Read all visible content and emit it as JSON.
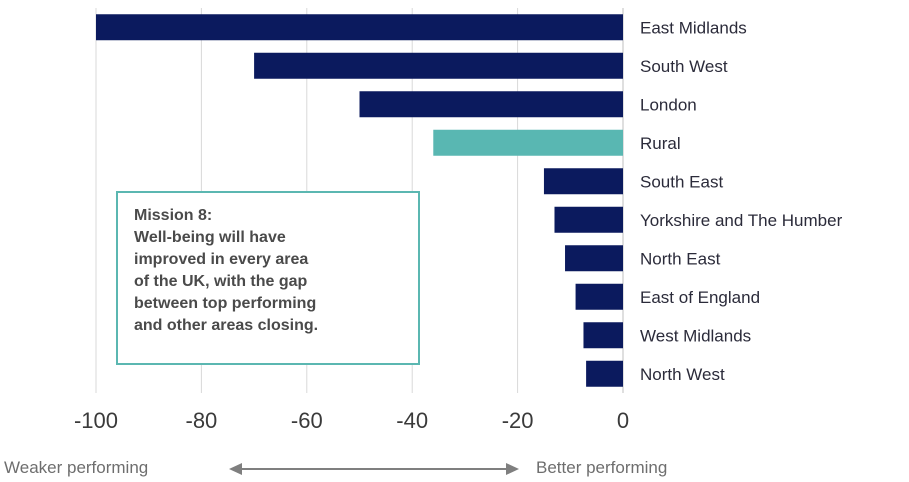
{
  "chart_data": {
    "type": "bar",
    "orientation": "horizontal",
    "categories": [
      "East Midlands",
      "South West",
      "London",
      "Rural",
      "South East",
      "Yorkshire and The Humber",
      "North East",
      "East of England",
      "West Midlands",
      "North West"
    ],
    "values": [
      -100,
      -70,
      -50,
      -36,
      -15,
      -13,
      -11,
      -9,
      -7.5,
      -7
    ],
    "highlight_category": "Rural",
    "colors": {
      "default": "#0b1a5e",
      "highlight": "#59b7b2",
      "grid": "#d9d9d9",
      "callout_border": "#5bb7b1"
    },
    "xlim": [
      -100,
      0
    ],
    "xticks": [
      -100,
      -80,
      -60,
      -40,
      -20,
      0
    ],
    "xtick_labels": [
      "-100",
      "-80",
      "-60",
      "-40",
      "-20",
      "0"
    ],
    "grid": true
  },
  "callout": {
    "lines": [
      "Mission 8:",
      "Well-being will have",
      "improved in every area",
      "of the UK, with the gap",
      "between top performing",
      "and other areas closing."
    ]
  },
  "footer": {
    "left_label": "Weaker performing",
    "right_label": "Better performing"
  }
}
